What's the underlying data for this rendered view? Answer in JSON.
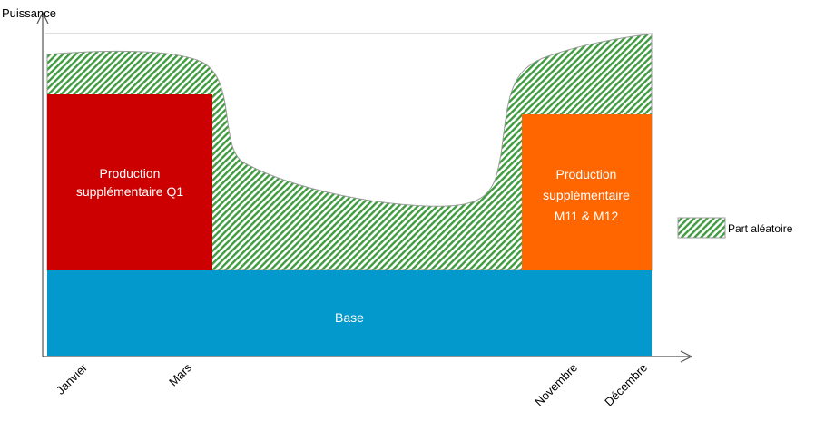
{
  "axes": {
    "y_label": "Puissance",
    "x_ticks": [
      "Janvier",
      "Mars",
      "Novembre",
      "Décembre"
    ]
  },
  "blocks": {
    "base": {
      "label": "Base",
      "color": "#0499cc"
    },
    "q1": {
      "label_lines": [
        "Production",
        "supplémentaire Q1"
      ],
      "color": "#cc0000"
    },
    "m11_m12": {
      "label_lines": [
        "Production",
        "supplémentaire",
        "M11 & M12"
      ],
      "color": "#ff6600"
    }
  },
  "random_part": {
    "color": "#3f9b3f",
    "pattern": "diagonal-hatch"
  },
  "legend": {
    "items": [
      {
        "label": "Part aléatoire",
        "swatch": "green-hatch"
      }
    ]
  }
}
